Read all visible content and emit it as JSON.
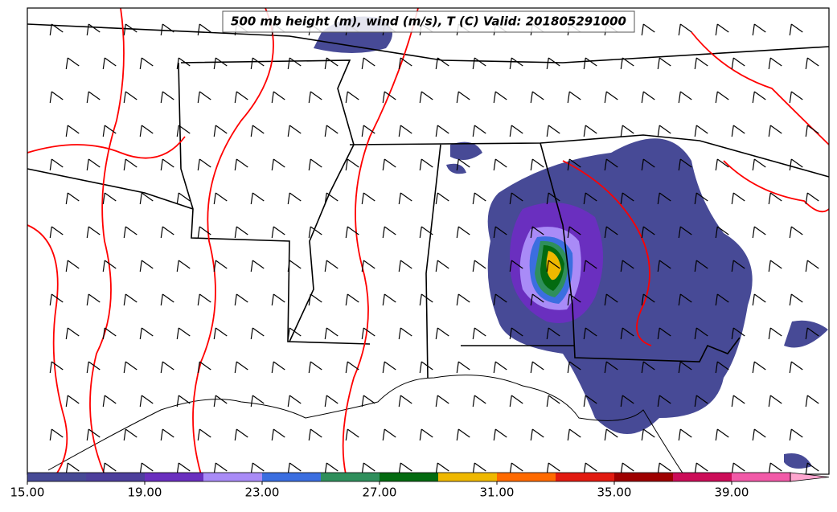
{
  "title": "500 mb height (m), wind (m/s), T (C) Valid: 201805291000",
  "colorbar": {
    "bounds": [
      15,
      17,
      19,
      21,
      23,
      25,
      27,
      29,
      31,
      33,
      35,
      37,
      39,
      41
    ],
    "colors": [
      "#474a96",
      "#4d3f9c",
      "#6a2fbf",
      "#a98bf7",
      "#3b6ee0",
      "#2f8f5c",
      "#036b10",
      "#efb800",
      "#ff6a00",
      "#e21a10",
      "#9e0000",
      "#cc0c58",
      "#f25aa8"
    ],
    "extend_color": "#ffa6cf",
    "ticks": [
      {
        "value": 15,
        "label": "15.00"
      },
      {
        "value": 19,
        "label": "19.00"
      },
      {
        "value": 23,
        "label": "23.00"
      },
      {
        "value": 27,
        "label": "27.00"
      },
      {
        "value": 31,
        "label": "31.00"
      },
      {
        "value": 35,
        "label": "35.00"
      },
      {
        "value": 39,
        "label": "39.00"
      }
    ]
  }
}
